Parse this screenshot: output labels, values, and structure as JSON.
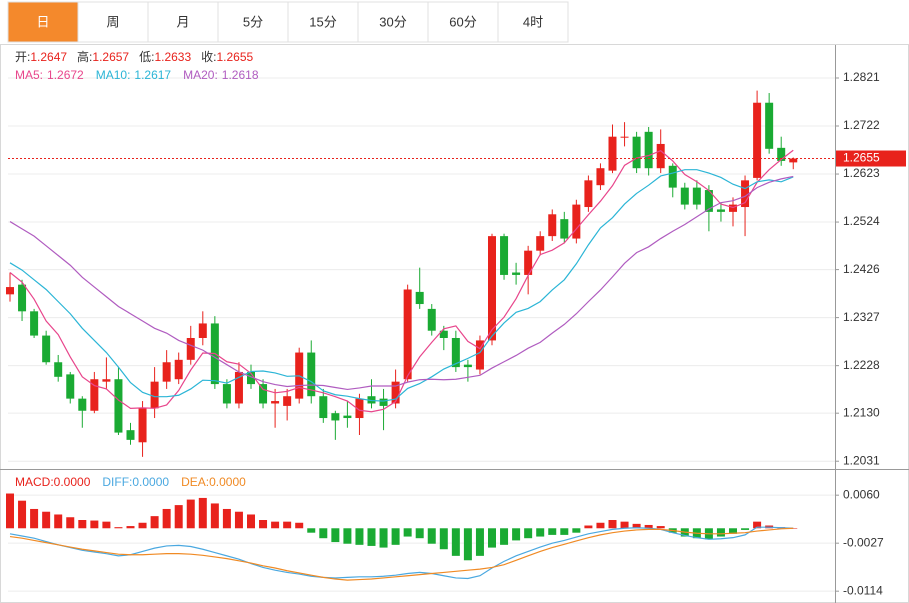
{
  "tabs": [
    "日",
    "周",
    "月",
    "5分",
    "15分",
    "30分",
    "60分",
    "4时"
  ],
  "chart_data": [
    {
      "type": "candlestick",
      "info": [
        {
          "label": "开:",
          "value": "1.2647"
        },
        {
          "label": "高:",
          "value": "1.2657"
        },
        {
          "label": "低:",
          "value": "1.2633"
        },
        {
          "label": "收:",
          "value": "1.2655"
        }
      ],
      "up_color": "#e8221c",
      "down_color": "#1aaa33",
      "open": [
        1.2375,
        1.2395,
        1.234,
        1.229,
        1.2235,
        1.221,
        1.216,
        1.2135,
        1.2195,
        1.22,
        1.2095,
        1.207,
        1.214,
        1.2195,
        1.22,
        1.224,
        1.2285,
        1.2315,
        1.219,
        1.215,
        1.2215,
        1.219,
        1.215,
        1.2145,
        1.216,
        1.2255,
        1.2165,
        1.213,
        1.2125,
        1.212,
        1.2165,
        1.216,
        1.215,
        1.22,
        1.238,
        1.2345,
        1.23,
        1.2285,
        1.223,
        1.222,
        1.228,
        1.2495,
        1.242,
        1.2415,
        1.2465,
        1.2495,
        1.253,
        1.249,
        1.2555,
        1.26,
        1.263,
        1.27,
        1.27,
        1.271,
        1.2635,
        1.264,
        1.2595,
        1.2595,
        1.259,
        1.255,
        1.2545,
        1.2555,
        1.2615,
        1.277,
        1.2677,
        1.2647
      ],
      "high": [
        1.242,
        1.2405,
        1.2345,
        1.23,
        1.225,
        1.2215,
        1.2165,
        1.2215,
        1.2245,
        1.2225,
        1.211,
        1.2155,
        1.2225,
        1.226,
        1.2255,
        1.231,
        1.234,
        1.233,
        1.22,
        1.2235,
        1.223,
        1.22,
        1.218,
        1.218,
        1.2265,
        1.228,
        1.218,
        1.2135,
        1.2155,
        1.217,
        1.22,
        1.218,
        1.222,
        1.2395,
        1.243,
        1.2355,
        1.231,
        1.23,
        1.224,
        1.229,
        1.25,
        1.25,
        1.244,
        1.2475,
        1.2505,
        1.255,
        1.2545,
        1.257,
        1.262,
        1.2645,
        1.2725,
        1.273,
        1.271,
        1.272,
        1.2715,
        1.2645,
        1.2605,
        1.261,
        1.26,
        1.2565,
        1.2575,
        1.262,
        1.2795,
        1.279,
        1.27,
        1.2657
      ],
      "low": [
        1.236,
        1.232,
        1.2285,
        1.223,
        1.2195,
        1.215,
        1.21,
        1.213,
        1.218,
        1.2085,
        1.2065,
        1.204,
        1.212,
        1.218,
        1.219,
        1.223,
        1.227,
        1.218,
        1.214,
        1.214,
        1.218,
        1.214,
        1.21,
        1.2115,
        1.215,
        1.215,
        1.211,
        1.2075,
        1.21,
        1.2085,
        1.214,
        1.2095,
        1.214,
        1.2195,
        1.2345,
        1.229,
        1.226,
        1.2215,
        1.2195,
        1.221,
        1.227,
        1.2405,
        1.2395,
        1.2375,
        1.2455,
        1.2485,
        1.248,
        1.248,
        1.2545,
        1.259,
        1.2625,
        1.268,
        1.2625,
        1.262,
        1.2625,
        1.2575,
        1.255,
        1.255,
        1.2505,
        1.2525,
        1.2515,
        1.2495,
        1.261,
        1.2665,
        1.264,
        1.2633
      ],
      "close": [
        1.239,
        1.234,
        1.229,
        1.2235,
        1.2205,
        1.216,
        1.2135,
        1.22,
        1.22,
        1.209,
        1.2075,
        1.214,
        1.2195,
        1.2235,
        1.224,
        1.2285,
        1.2315,
        1.219,
        1.215,
        1.2215,
        1.219,
        1.215,
        1.2155,
        1.2165,
        1.2255,
        1.2165,
        1.212,
        1.2115,
        1.212,
        1.216,
        1.215,
        1.2145,
        1.2195,
        1.2385,
        1.2355,
        1.23,
        1.2285,
        1.2225,
        1.2225,
        1.228,
        1.2495,
        1.2415,
        1.2415,
        1.2465,
        1.2495,
        1.254,
        1.249,
        1.256,
        1.261,
        1.2635,
        1.27,
        1.27,
        1.2635,
        1.2635,
        1.2685,
        1.2595,
        1.256,
        1.256,
        1.2545,
        1.2545,
        1.256,
        1.261,
        1.277,
        1.2675,
        1.265,
        1.2655
      ],
      "series": [
        {
          "name": "MA5:",
          "current": "1.2672",
          "color": "#e8468c",
          "values": [
            1.242,
            1.24,
            1.2365,
            1.232,
            1.2292,
            1.2246,
            1.2205,
            1.2187,
            1.218,
            1.2157,
            1.214,
            1.2141,
            1.214,
            1.2147,
            1.2177,
            1.2219,
            1.2254,
            1.2253,
            1.2236,
            1.2231,
            1.2212,
            1.2179,
            1.2172,
            1.2175,
            1.2183,
            1.2178,
            1.2172,
            1.2164,
            1.2155,
            1.2136,
            1.2133,
            1.2138,
            1.2154,
            1.2207,
            1.2246,
            1.2276,
            1.2304,
            1.231,
            1.2278,
            1.2263,
            1.2302,
            1.2328,
            1.2366,
            1.2414,
            1.2457,
            1.2466,
            1.2481,
            1.251,
            1.2539,
            1.2567,
            1.2599,
            1.2641,
            1.2656,
            1.2661,
            1.2671,
            1.265,
            1.2622,
            1.2607,
            1.2589,
            1.2561,
            1.2554,
            1.2564,
            1.2606,
            1.2632,
            1.2653,
            1.2672
          ]
        },
        {
          "name": "MA10:",
          "current": "1.2617",
          "color": "#2bb5d6",
          "values": [
            1.244,
            1.2425,
            1.2405,
            1.2385,
            1.236,
            1.2335,
            1.2305,
            1.228,
            1.2255,
            1.2225,
            1.2193,
            1.2173,
            1.2164,
            1.2164,
            1.2167,
            1.218,
            1.2198,
            1.2197,
            1.2192,
            1.2204,
            1.2216,
            1.2217,
            1.2213,
            1.2206,
            1.2207,
            1.2195,
            1.2176,
            1.2168,
            1.2165,
            1.216,
            1.2156,
            1.2155,
            1.2159,
            1.2181,
            1.2191,
            1.2205,
            1.2221,
            1.2232,
            1.2243,
            1.2255,
            1.2289,
            1.2316,
            1.2338,
            1.2346,
            1.236,
            1.2384,
            1.2405,
            1.2438,
            1.2477,
            1.2512,
            1.2533,
            1.2561,
            1.2583,
            1.26,
            1.2619,
            1.2625,
            1.2632,
            1.2632,
            1.2625,
            1.2616,
            1.2602,
            1.2593,
            1.2607,
            1.2611,
            1.2607,
            1.2617
          ]
        },
        {
          "name": "MA20:",
          "current": "1.2618",
          "color": "#b05cc0",
          "values": [
            1.2525,
            1.251,
            1.2495,
            1.2475,
            1.2455,
            1.2435,
            1.241,
            1.239,
            1.237,
            1.235,
            1.2335,
            1.232,
            1.2305,
            1.2295,
            1.228,
            1.227,
            1.226,
            1.2245,
            1.223,
            1.2215,
            1.2205,
            1.2195,
            1.2189,
            1.2185,
            1.2187,
            1.2188,
            1.2187,
            1.2183,
            1.2179,
            1.2182,
            1.2186,
            1.2186,
            1.2186,
            1.2194,
            1.2199,
            1.22,
            1.2199,
            1.22,
            1.2204,
            1.2208,
            1.2223,
            1.2236,
            1.2249,
            1.2264,
            1.2276,
            1.2295,
            1.2313,
            1.2335,
            1.236,
            1.2384,
            1.2411,
            1.2439,
            1.2461,
            1.2473,
            1.249,
            1.2505,
            1.2519,
            1.2535,
            1.2551,
            1.2564,
            1.2568,
            1.2577,
            1.2595,
            1.2606,
            1.2613,
            1.2618
          ]
        }
      ],
      "last_price": 1.2655,
      "ylim": [
        1.2017,
        1.2889
      ],
      "yticks": [
        1.2821,
        {
          "value": 1.2722,
          "label": "1.2722"
        },
        1.2623,
        1.2524,
        1.2426,
        1.2327,
        1.2228,
        {
          "value": 1.213,
          "label": "1.2130"
        },
        1.2031
      ],
      "grid": true
    },
    {
      "type": "macd",
      "series": [
        {
          "name": "MACD:",
          "current": "0.0000",
          "color": "#e8221c",
          "down_color": "#1aaa33",
          "kind": "bar",
          "values": [
            0.0063,
            0.005,
            0.0035,
            0.003,
            0.0025,
            0.002,
            0.0015,
            0.0014,
            0.0012,
            0.0002,
            0.0004,
            0.001,
            0.0022,
            0.0035,
            0.0042,
            0.0052,
            0.0055,
            0.0045,
            0.0035,
            0.003,
            0.0025,
            0.0015,
            0.0012,
            0.0012,
            0.001,
            -0.0008,
            -0.0018,
            -0.0025,
            -0.0028,
            -0.003,
            -0.0032,
            -0.0035,
            -0.003,
            -0.0015,
            -0.0018,
            -0.0028,
            -0.0038,
            -0.005,
            -0.0058,
            -0.005,
            -0.0035,
            -0.003,
            -0.0022,
            -0.0018,
            -0.0015,
            -0.0012,
            -0.0012,
            -0.0008,
            0.0005,
            0.001,
            0.0015,
            0.0012,
            0.0008,
            0.0006,
            0.0004,
            -0.0008,
            -0.0015,
            -0.0018,
            -0.002,
            -0.0015,
            -0.001,
            -0.0003,
            0.0012,
            0.0005,
            0.0002,
            0
          ]
        },
        {
          "name": "DIFF:",
          "current": "0.0000",
          "color": "#4aa8e0",
          "kind": "line",
          "values": [
            -0.001,
            -0.0014,
            -0.0018,
            -0.0024,
            -0.003,
            -0.0035,
            -0.004,
            -0.0043,
            -0.0046,
            -0.005,
            -0.0048,
            -0.0042,
            -0.0036,
            -0.0032,
            -0.0031,
            -0.0033,
            -0.0038,
            -0.0044,
            -0.005,
            -0.0056,
            -0.0064,
            -0.0071,
            -0.0076,
            -0.008,
            -0.0083,
            -0.0087,
            -0.0089,
            -0.009,
            -0.0089,
            -0.0088,
            -0.0088,
            -0.0087,
            -0.0085,
            -0.0082,
            -0.008,
            -0.0082,
            -0.0086,
            -0.009,
            -0.0091,
            -0.0086,
            -0.0072,
            -0.006,
            -0.005,
            -0.0042,
            -0.0034,
            -0.0027,
            -0.0022,
            -0.0016,
            -0.001,
            -0.0006,
            -0.0002,
            0,
            0.0001,
            0,
            -0.0002,
            -0.0008,
            -0.0013,
            -0.0017,
            -0.002,
            -0.0019,
            -0.0017,
            -0.0012,
            0.0002,
            0.0002,
            0.0001,
            0
          ]
        },
        {
          "name": "DEA:",
          "current": "0.0000",
          "color": "#f08a24",
          "kind": "line",
          "values": [
            -0.0015,
            -0.0018,
            -0.0022,
            -0.0026,
            -0.003,
            -0.0034,
            -0.0038,
            -0.0041,
            -0.0044,
            -0.0047,
            -0.0048,
            -0.0048,
            -0.0047,
            -0.0046,
            -0.0046,
            -0.0047,
            -0.0049,
            -0.0052,
            -0.0055,
            -0.0059,
            -0.0063,
            -0.0068,
            -0.0072,
            -0.0077,
            -0.0081,
            -0.0085,
            -0.0089,
            -0.0092,
            -0.0094,
            -0.0093,
            -0.0092,
            -0.009,
            -0.0088,
            -0.0086,
            -0.0084,
            -0.0082,
            -0.008,
            -0.0078,
            -0.0076,
            -0.0074,
            -0.0071,
            -0.0066,
            -0.0058,
            -0.005,
            -0.0042,
            -0.0035,
            -0.0029,
            -0.0023,
            -0.0017,
            -0.0012,
            -0.0008,
            -0.0005,
            -0.0003,
            -0.0002,
            -0.0002,
            -0.0004,
            -0.0007,
            -0.0009,
            -0.001,
            -0.001,
            -0.0009,
            -0.0008,
            -0.0005,
            -0.0003,
            -0.0001,
            0
          ]
        }
      ],
      "ylim": [
        -0.013,
        0.0102
      ],
      "yticks": [
        {
          "value": 0.006,
          "label": "0.0060"
        },
        -0.0027,
        -0.0114
      ],
      "grid": true
    }
  ]
}
